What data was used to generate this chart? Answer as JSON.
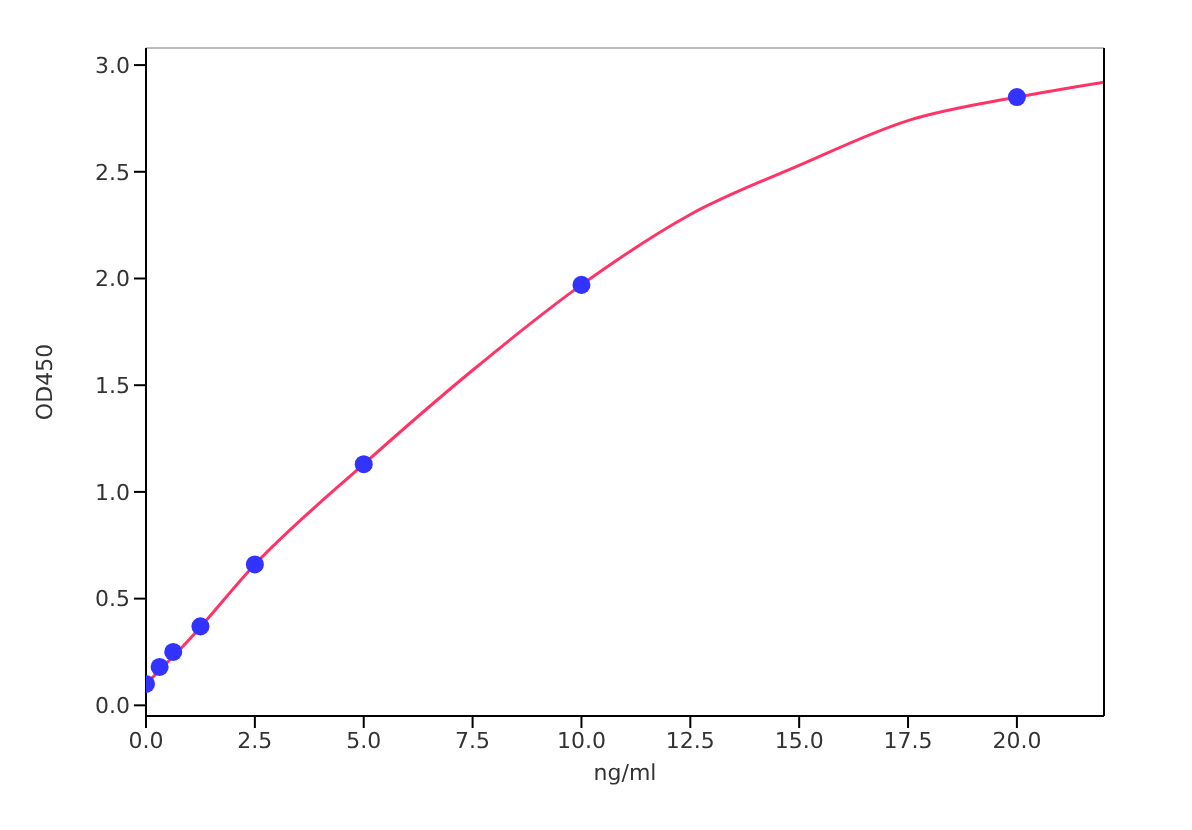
{
  "chart_data": {
    "type": "scatter",
    "xlabel": "ng/ml",
    "ylabel": "OD450",
    "xlim": [
      0,
      22
    ],
    "ylim": [
      -0.05,
      3.08
    ],
    "xticks": [
      {
        "value": 0,
        "label": "0.0"
      },
      2.5,
      {
        "value": 5,
        "label": "5.0"
      },
      7.5,
      {
        "value": 10,
        "label": "10.0"
      },
      12.5,
      {
        "value": 15,
        "label": "15.0"
      },
      17.5,
      {
        "value": 20,
        "label": "20.0"
      }
    ],
    "yticks": [
      {
        "value": 0,
        "label": "0.0"
      },
      0.5,
      {
        "value": 1,
        "label": "1.0"
      },
      1.5,
      {
        "value": 2,
        "label": "2.0"
      },
      2.5,
      {
        "value": 3,
        "label": "3.0"
      }
    ],
    "grid": false,
    "series": [
      {
        "type": "line",
        "color": "#ff3366",
        "marker": "none",
        "x": [
          0,
          1,
          2.5,
          5,
          7.5,
          10,
          12.5,
          15,
          17.5,
          20,
          22
        ],
        "values": [
          0.1,
          0.31,
          0.66,
          1.13,
          1.57,
          1.97,
          2.3,
          2.53,
          2.74,
          2.85,
          2.92
        ]
      },
      {
        "color": "#3333ff",
        "marker": "circle",
        "x": [
          0,
          0.313,
          0.625,
          1.25,
          2.5,
          5,
          10,
          20
        ],
        "values": [
          0.1,
          0.18,
          0.25,
          0.37,
          0.66,
          1.13,
          1.97,
          2.85
        ]
      }
    ]
  }
}
